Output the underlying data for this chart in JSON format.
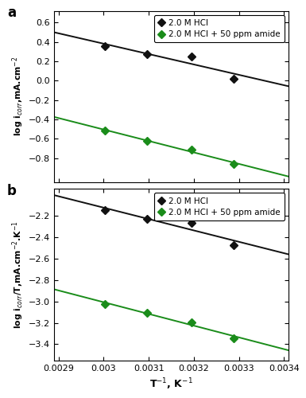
{
  "panel_a": {
    "black_x": [
      0.003003,
      0.003096,
      0.003195,
      0.003289
    ],
    "black_y": [
      0.355,
      0.275,
      0.247,
      0.022
    ],
    "green_x": [
      0.003003,
      0.003096,
      0.003195,
      0.003289
    ],
    "green_y": [
      -0.513,
      -0.622,
      -0.713,
      -0.86
    ],
    "ylabel": "log i$_{corr}$,mA.cm$^{-2}$",
    "ylim": [
      -1.05,
      0.72
    ],
    "yticks": [
      0.6,
      0.4,
      0.2,
      0.0,
      -0.2,
      -0.4,
      -0.6,
      -0.8
    ],
    "legend1": "2.0 M HCl",
    "legend2": "2.0 M HCl + 50 ppm amide",
    "label": "a"
  },
  "panel_b": {
    "black_x": [
      0.003003,
      0.003096,
      0.003195,
      0.003289
    ],
    "black_y": [
      -2.147,
      -2.234,
      -2.268,
      -2.475
    ],
    "green_x": [
      0.003003,
      0.003096,
      0.003195,
      0.003289
    ],
    "green_y": [
      -3.023,
      -3.108,
      -3.196,
      -3.343
    ],
    "ylabel": "log i$_{corr}$/T,mA.cm$^{-2}$.K$^{-1}$",
    "ylim": [
      -3.55,
      -1.95
    ],
    "yticks": [
      -2.2,
      -2.4,
      -2.6,
      -2.8,
      -3.0,
      -3.2,
      -3.4
    ],
    "legend1": "2.0 M HCl",
    "legend2": "2.0 M HCl + 50 ppm amide",
    "label": "b"
  },
  "xlabel": "T$^{-1}$, K$^{-1}$",
  "xlim": [
    0.00289,
    0.00341
  ],
  "xticks": [
    0.0029,
    0.003,
    0.0031,
    0.0032,
    0.0033,
    0.0034
  ],
  "xticklabels": [
    "0.0029",
    "0.003",
    "0.0031",
    "0.0032",
    "0.0033",
    "0.0034"
  ],
  "black_color": "#111111",
  "green_color": "#1a8c1a",
  "marker": "D",
  "markersize": 5.5,
  "linewidth": 1.4
}
